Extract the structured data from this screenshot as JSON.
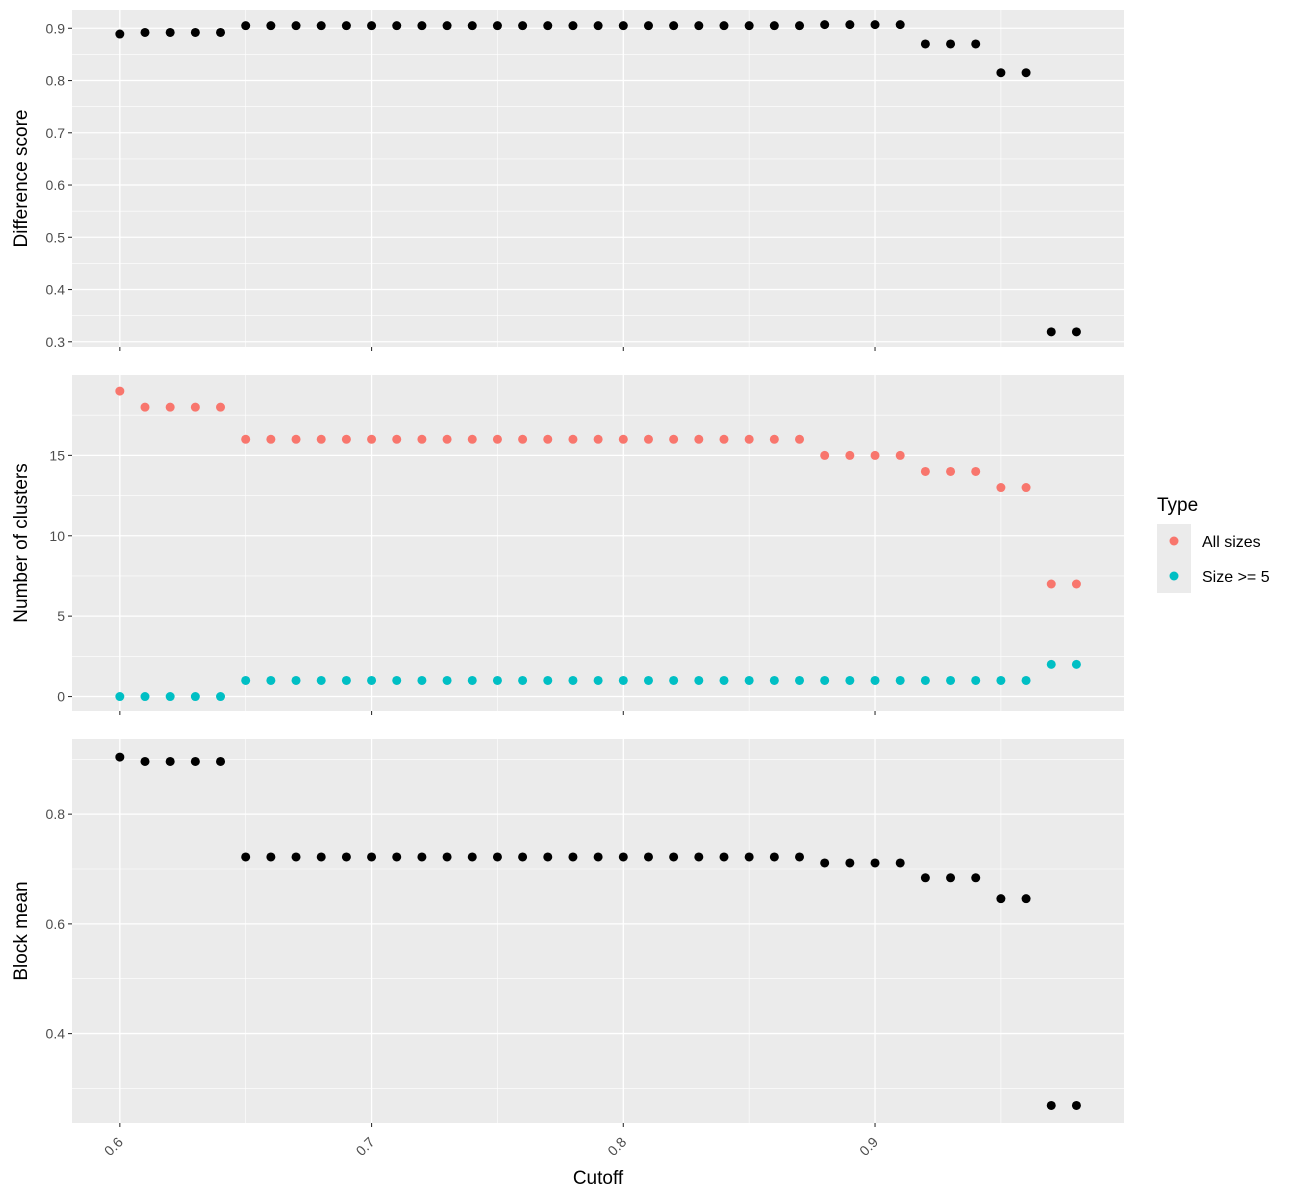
{
  "chart_data": [
    {
      "type": "scatter",
      "panel": "difference-score",
      "ylabel": "Difference score",
      "xlabel": "",
      "ylim": [
        0.29,
        0.935
      ],
      "yticks": [
        0.3,
        0.4,
        0.5,
        0.6,
        0.7,
        0.8,
        0.9
      ],
      "ytick_labels": [
        "0.3",
        "0.4",
        "0.5",
        "0.6",
        "0.7",
        "0.8",
        "0.9"
      ],
      "series": [
        {
          "color": "#000000",
          "x": [
            0.6,
            0.61,
            0.62,
            0.63,
            0.64,
            0.65,
            0.66,
            0.67,
            0.68,
            0.69,
            0.7,
            0.71,
            0.72,
            0.73,
            0.74,
            0.75,
            0.76,
            0.77,
            0.78,
            0.79,
            0.8,
            0.81,
            0.82,
            0.83,
            0.84,
            0.85,
            0.86,
            0.87,
            0.88,
            0.89,
            0.9,
            0.91,
            0.92,
            0.93,
            0.94,
            0.95,
            0.96,
            0.97,
            0.98
          ],
          "y": [
            0.889,
            0.892,
            0.892,
            0.892,
            0.892,
            0.905,
            0.905,
            0.905,
            0.905,
            0.905,
            0.905,
            0.905,
            0.905,
            0.905,
            0.905,
            0.905,
            0.905,
            0.905,
            0.905,
            0.905,
            0.905,
            0.905,
            0.905,
            0.905,
            0.905,
            0.905,
            0.905,
            0.905,
            0.907,
            0.907,
            0.907,
            0.907,
            0.87,
            0.87,
            0.87,
            0.815,
            0.815,
            0.319,
            0.319
          ]
        }
      ]
    },
    {
      "type": "scatter",
      "panel": "number-of-clusters",
      "ylabel": "Number of clusters",
      "xlabel": "",
      "ylim": [
        -0.9,
        20.0
      ],
      "yticks": [
        0,
        5,
        10,
        15
      ],
      "ytick_labels": [
        "0",
        "5",
        "10",
        "15"
      ],
      "series": [
        {
          "name": "All sizes",
          "color": "#F8766D",
          "x": [
            0.6,
            0.61,
            0.62,
            0.63,
            0.64,
            0.65,
            0.66,
            0.67,
            0.68,
            0.69,
            0.7,
            0.71,
            0.72,
            0.73,
            0.74,
            0.75,
            0.76,
            0.77,
            0.78,
            0.79,
            0.8,
            0.81,
            0.82,
            0.83,
            0.84,
            0.85,
            0.86,
            0.87,
            0.88,
            0.89,
            0.9,
            0.91,
            0.92,
            0.93,
            0.94,
            0.95,
            0.96,
            0.97,
            0.98
          ],
          "y": [
            19,
            18,
            18,
            18,
            18,
            16,
            16,
            16,
            16,
            16,
            16,
            16,
            16,
            16,
            16,
            16,
            16,
            16,
            16,
            16,
            16,
            16,
            16,
            16,
            16,
            16,
            16,
            16,
            15,
            15,
            15,
            15,
            14,
            14,
            14,
            13,
            13,
            7,
            7
          ]
        },
        {
          "name": "Size >= 5",
          "color": "#00BFC4",
          "x": [
            0.6,
            0.61,
            0.62,
            0.63,
            0.64,
            0.65,
            0.66,
            0.67,
            0.68,
            0.69,
            0.7,
            0.71,
            0.72,
            0.73,
            0.74,
            0.75,
            0.76,
            0.77,
            0.78,
            0.79,
            0.8,
            0.81,
            0.82,
            0.83,
            0.84,
            0.85,
            0.86,
            0.87,
            0.88,
            0.89,
            0.9,
            0.91,
            0.92,
            0.93,
            0.94,
            0.95,
            0.96,
            0.97,
            0.98
          ],
          "y": [
            0,
            0,
            0,
            0,
            0,
            1,
            1,
            1,
            1,
            1,
            1,
            1,
            1,
            1,
            1,
            1,
            1,
            1,
            1,
            1,
            1,
            1,
            1,
            1,
            1,
            1,
            1,
            1,
            1,
            1,
            1,
            1,
            1,
            1,
            1,
            1,
            1,
            2,
            2
          ]
        }
      ]
    },
    {
      "type": "scatter",
      "panel": "block-mean",
      "ylabel": "Block mean",
      "xlabel": "Cutoff",
      "ylim": [
        0.237,
        0.937
      ],
      "yticks": [
        0.4,
        0.6,
        0.8
      ],
      "ytick_labels": [
        "0.4",
        "0.6",
        "0.8"
      ],
      "series": [
        {
          "color": "#000000",
          "x": [
            0.6,
            0.61,
            0.62,
            0.63,
            0.64,
            0.65,
            0.66,
            0.67,
            0.68,
            0.69,
            0.7,
            0.71,
            0.72,
            0.73,
            0.74,
            0.75,
            0.76,
            0.77,
            0.78,
            0.79,
            0.8,
            0.81,
            0.82,
            0.83,
            0.84,
            0.85,
            0.86,
            0.87,
            0.88,
            0.89,
            0.9,
            0.91,
            0.92,
            0.93,
            0.94,
            0.95,
            0.96,
            0.97,
            0.98
          ],
          "y": [
            0.904,
            0.896,
            0.896,
            0.896,
            0.896,
            0.722,
            0.722,
            0.722,
            0.722,
            0.722,
            0.722,
            0.722,
            0.722,
            0.722,
            0.722,
            0.722,
            0.722,
            0.722,
            0.722,
            0.722,
            0.722,
            0.722,
            0.722,
            0.722,
            0.722,
            0.722,
            0.722,
            0.722,
            0.711,
            0.711,
            0.711,
            0.711,
            0.684,
            0.684,
            0.684,
            0.646,
            0.646,
            0.269,
            0.269
          ]
        }
      ]
    }
  ],
  "x_axis": {
    "xlim": [
      0.581,
      0.9989
    ],
    "ticks": [
      0.6,
      0.7,
      0.8,
      0.9
    ],
    "tick_labels": [
      "0.6",
      "0.7",
      "0.8",
      "0.9"
    ],
    "title": "Cutoff",
    "tick_rotation_deg": -45
  },
  "legend": {
    "title": "Type",
    "placement": "right",
    "items": [
      {
        "label": "All sizes",
        "color": "#F8766D"
      },
      {
        "label": "Size >= 5",
        "color": "#00BFC4"
      }
    ]
  },
  "theme": {
    "panel_background": "#EBEBEB",
    "grid_color": "#FFFFFF",
    "tick_color": "#333333"
  }
}
